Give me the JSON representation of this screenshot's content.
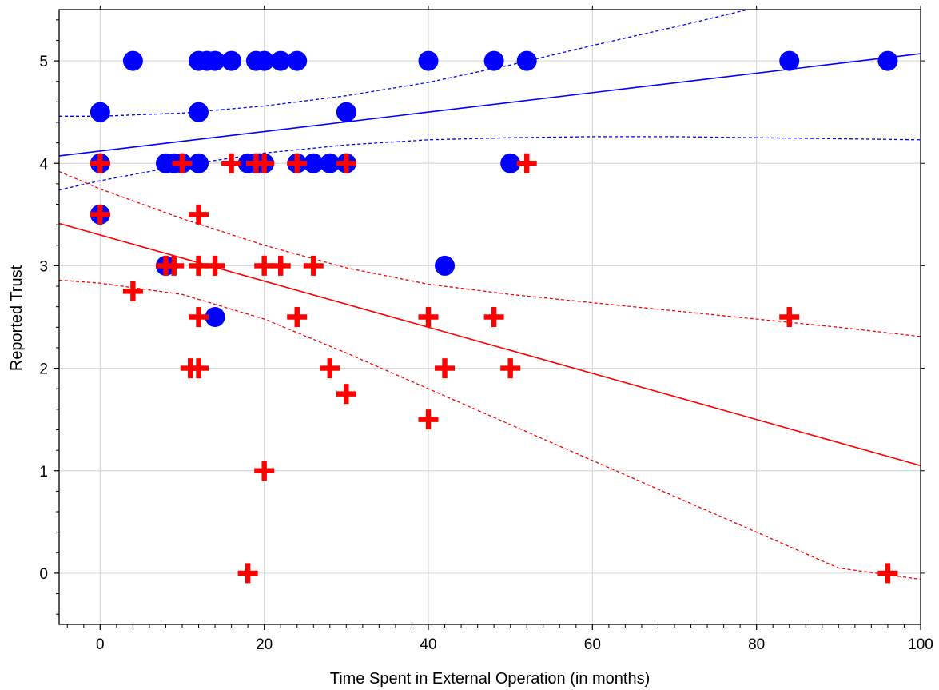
{
  "chart_data": {
    "type": "scatter",
    "title": "",
    "xlabel": "Time Spent in External Operation (in months)",
    "ylabel": "Reported Trust",
    "xlim": [
      -5,
      100
    ],
    "ylim": [
      -0.5,
      5.5
    ],
    "xticks": [
      0,
      20,
      40,
      60,
      80,
      100
    ],
    "yticks": [
      0,
      1,
      2,
      3,
      4,
      5
    ],
    "grid": true,
    "legend": "none",
    "series": [
      {
        "marker": "circle",
        "color": "#0000ff",
        "points": [
          [
            4,
            5
          ],
          [
            12,
            5
          ],
          [
            13,
            5
          ],
          [
            14,
            5
          ],
          [
            16,
            5
          ],
          [
            19,
            5
          ],
          [
            20,
            5
          ],
          [
            22,
            5
          ],
          [
            24,
            5
          ],
          [
            40,
            5
          ],
          [
            48,
            5
          ],
          [
            52,
            5
          ],
          [
            84,
            5
          ],
          [
            96,
            5
          ],
          [
            0,
            4.5
          ],
          [
            12,
            4.5
          ],
          [
            30,
            4.5
          ],
          [
            0,
            4
          ],
          [
            8,
            4
          ],
          [
            9,
            4
          ],
          [
            10,
            4
          ],
          [
            12,
            4
          ],
          [
            18,
            4
          ],
          [
            19,
            4
          ],
          [
            20,
            4
          ],
          [
            24,
            4
          ],
          [
            26,
            4
          ],
          [
            28,
            4
          ],
          [
            30,
            4
          ],
          [
            50,
            4
          ],
          [
            0,
            3.5
          ],
          [
            8,
            3
          ],
          [
            42,
            3
          ],
          [
            14,
            2.5
          ]
        ],
        "fit": {
          "intercept": 4.12,
          "slope": 0.0095
        },
        "ci_upper": [
          [
            -5,
            4.46
          ],
          [
            0,
            4.46
          ],
          [
            10,
            4.49
          ],
          [
            20,
            4.56
          ],
          [
            30,
            4.66
          ],
          [
            40,
            4.79
          ],
          [
            50,
            4.96
          ],
          [
            60,
            5.15
          ],
          [
            70,
            5.33
          ],
          [
            80,
            5.52
          ],
          [
            90,
            5.72
          ],
          [
            100,
            5.92
          ]
        ],
        "ci_lower": [
          [
            -5,
            3.74
          ],
          [
            0,
            3.83
          ],
          [
            10,
            3.98
          ],
          [
            20,
            4.1
          ],
          [
            30,
            4.18
          ],
          [
            40,
            4.23
          ],
          [
            50,
            4.25
          ],
          [
            60,
            4.26
          ],
          [
            70,
            4.26
          ],
          [
            80,
            4.25
          ],
          [
            90,
            4.24
          ],
          [
            100,
            4.23
          ]
        ]
      },
      {
        "marker": "cross",
        "color": "#ff0000",
        "points": [
          [
            0,
            4
          ],
          [
            10,
            4
          ],
          [
            16,
            4
          ],
          [
            19,
            4
          ],
          [
            20,
            4
          ],
          [
            24,
            4
          ],
          [
            30,
            4
          ],
          [
            52,
            4
          ],
          [
            0,
            3.5
          ],
          [
            12,
            3.5
          ],
          [
            8,
            3
          ],
          [
            9,
            3
          ],
          [
            12,
            3
          ],
          [
            14,
            3
          ],
          [
            20,
            3
          ],
          [
            22,
            3
          ],
          [
            26,
            3
          ],
          [
            4,
            2.75
          ],
          [
            12,
            2.5
          ],
          [
            24,
            2.5
          ],
          [
            40,
            2.5
          ],
          [
            48,
            2.5
          ],
          [
            84,
            2.5
          ],
          [
            11,
            2
          ],
          [
            12,
            2
          ],
          [
            28,
            2
          ],
          [
            42,
            2
          ],
          [
            50,
            2
          ],
          [
            30,
            1.75
          ],
          [
            40,
            1.5
          ],
          [
            20,
            1
          ],
          [
            18,
            0
          ],
          [
            96,
            0
          ]
        ],
        "fit": {
          "intercept": 3.3,
          "slope": -0.0225
        },
        "ci_upper": [
          [
            -5,
            3.92
          ],
          [
            0,
            3.75
          ],
          [
            10,
            3.46
          ],
          [
            20,
            3.2
          ],
          [
            30,
            2.98
          ],
          [
            40,
            2.82
          ],
          [
            50,
            2.72
          ],
          [
            60,
            2.64
          ],
          [
            70,
            2.56
          ],
          [
            80,
            2.48
          ],
          [
            90,
            2.4
          ],
          [
            100,
            2.31
          ]
        ],
        "ci_lower": [
          [
            -5,
            2.86
          ],
          [
            0,
            2.83
          ],
          [
            10,
            2.72
          ],
          [
            20,
            2.48
          ],
          [
            30,
            2.15
          ],
          [
            40,
            1.8
          ],
          [
            50,
            1.45
          ],
          [
            60,
            1.1
          ],
          [
            70,
            0.75
          ],
          [
            80,
            0.4
          ],
          [
            90,
            0.05
          ],
          [
            100,
            -0.06
          ]
        ]
      }
    ]
  }
}
